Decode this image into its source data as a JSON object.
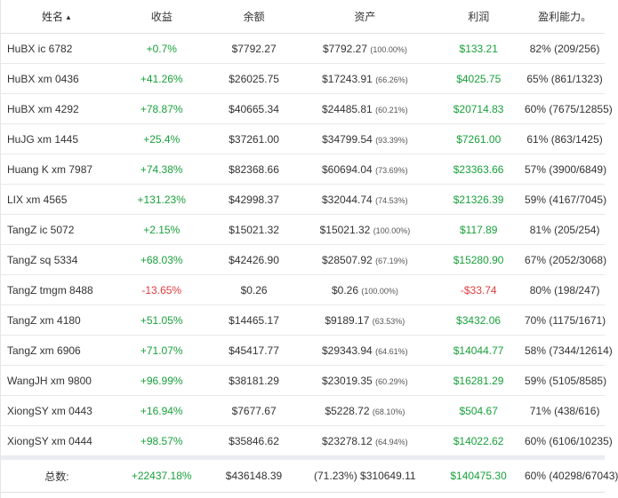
{
  "header": {
    "name": "姓名",
    "return": "收益",
    "balance": "余额",
    "assets": "资产",
    "profit": "利润",
    "win_rate": "盈利能力。"
  },
  "rows": [
    {
      "name": "HuBX ic 6782",
      "return": "+0.7%",
      "balance": "$7792.27",
      "assets": "$7792.27",
      "assets_pct": "(100.00%)",
      "profit": "$133.21",
      "win_rate": "82% (209/256)"
    },
    {
      "name": "HuBX xm 0436",
      "return": "+41.26%",
      "balance": "$26025.75",
      "assets": "$17243.91",
      "assets_pct": "(66.26%)",
      "profit": "$4025.75",
      "win_rate": "65% (861/1323)"
    },
    {
      "name": "HuBX xm 4292",
      "return": "+78.87%",
      "balance": "$40665.34",
      "assets": "$24485.81",
      "assets_pct": "(60.21%)",
      "profit": "$20714.83",
      "win_rate": "60% (7675/12855)"
    },
    {
      "name": "HuJG xm 1445",
      "return": "+25.4%",
      "balance": "$37261.00",
      "assets": "$34799.54",
      "assets_pct": "(93.39%)",
      "profit": "$7261.00",
      "win_rate": "61% (863/1425)"
    },
    {
      "name": "Huang K xm 7987",
      "return": "+74.38%",
      "balance": "$82368.66",
      "assets": "$60694.04",
      "assets_pct": "(73.69%)",
      "profit": "$23363.66",
      "win_rate": "57% (3900/6849)"
    },
    {
      "name": "LIX xm 4565",
      "return": "+131.23%",
      "balance": "$42998.37",
      "assets": "$32044.74",
      "assets_pct": "(74.53%)",
      "profit": "$21326.39",
      "win_rate": "59% (4167/7045)"
    },
    {
      "name": "TangZ ic 5072",
      "return": "+2.15%",
      "balance": "$15021.32",
      "assets": "$15021.32",
      "assets_pct": "(100.00%)",
      "profit": "$117.89",
      "win_rate": "81% (205/254)"
    },
    {
      "name": "TangZ sq 5334",
      "return": "+68.03%",
      "balance": "$42426.90",
      "assets": "$28507.92",
      "assets_pct": "(67.19%)",
      "profit": "$15280.90",
      "win_rate": "67% (2052/3068)"
    },
    {
      "name": "TangZ tmgm 8488",
      "return": "-13.65%",
      "balance": "$0.26",
      "assets": "$0.26",
      "assets_pct": "(100.00%)",
      "profit": "-$33.74",
      "win_rate": "80% (198/247)"
    },
    {
      "name": "TangZ xm 4180",
      "return": "+51.05%",
      "balance": "$14465.17",
      "assets": "$9189.17",
      "assets_pct": "(63.53%)",
      "profit": "$3432.06",
      "win_rate": "70% (1175/1671)"
    },
    {
      "name": "TangZ xm 6906",
      "return": "+71.07%",
      "balance": "$45417.77",
      "assets": "$29343.94",
      "assets_pct": "(64.61%)",
      "profit": "$14044.77",
      "win_rate": "58% (7344/12614)"
    },
    {
      "name": "WangJH xm 9800",
      "return": "+96.99%",
      "balance": "$38181.29",
      "assets": "$23019.35",
      "assets_pct": "(60.29%)",
      "profit": "$16281.29",
      "win_rate": "59% (5105/8585)"
    },
    {
      "name": "XiongSY xm 0443",
      "return": "+16.94%",
      "balance": "$7677.67",
      "assets": "$5228.72",
      "assets_pct": "(68.10%)",
      "profit": "$504.67",
      "win_rate": "71% (438/616)"
    },
    {
      "name": "XiongSY xm 0444",
      "return": "+98.57%",
      "balance": "$35846.62",
      "assets": "$23278.12",
      "assets_pct": "(64.94%)",
      "profit": "$14022.62",
      "win_rate": "60% (6106/10235)"
    }
  ],
  "total": {
    "label": "总数:",
    "return": "+22437.18%",
    "balance": "$436148.39",
    "assets": "(71.23%) $310649.11",
    "profit": "$140475.30",
    "win_rate": "60% (40298/67043)"
  },
  "colors": {
    "positive": "#19a03b",
    "negative": "#e03c3c"
  }
}
